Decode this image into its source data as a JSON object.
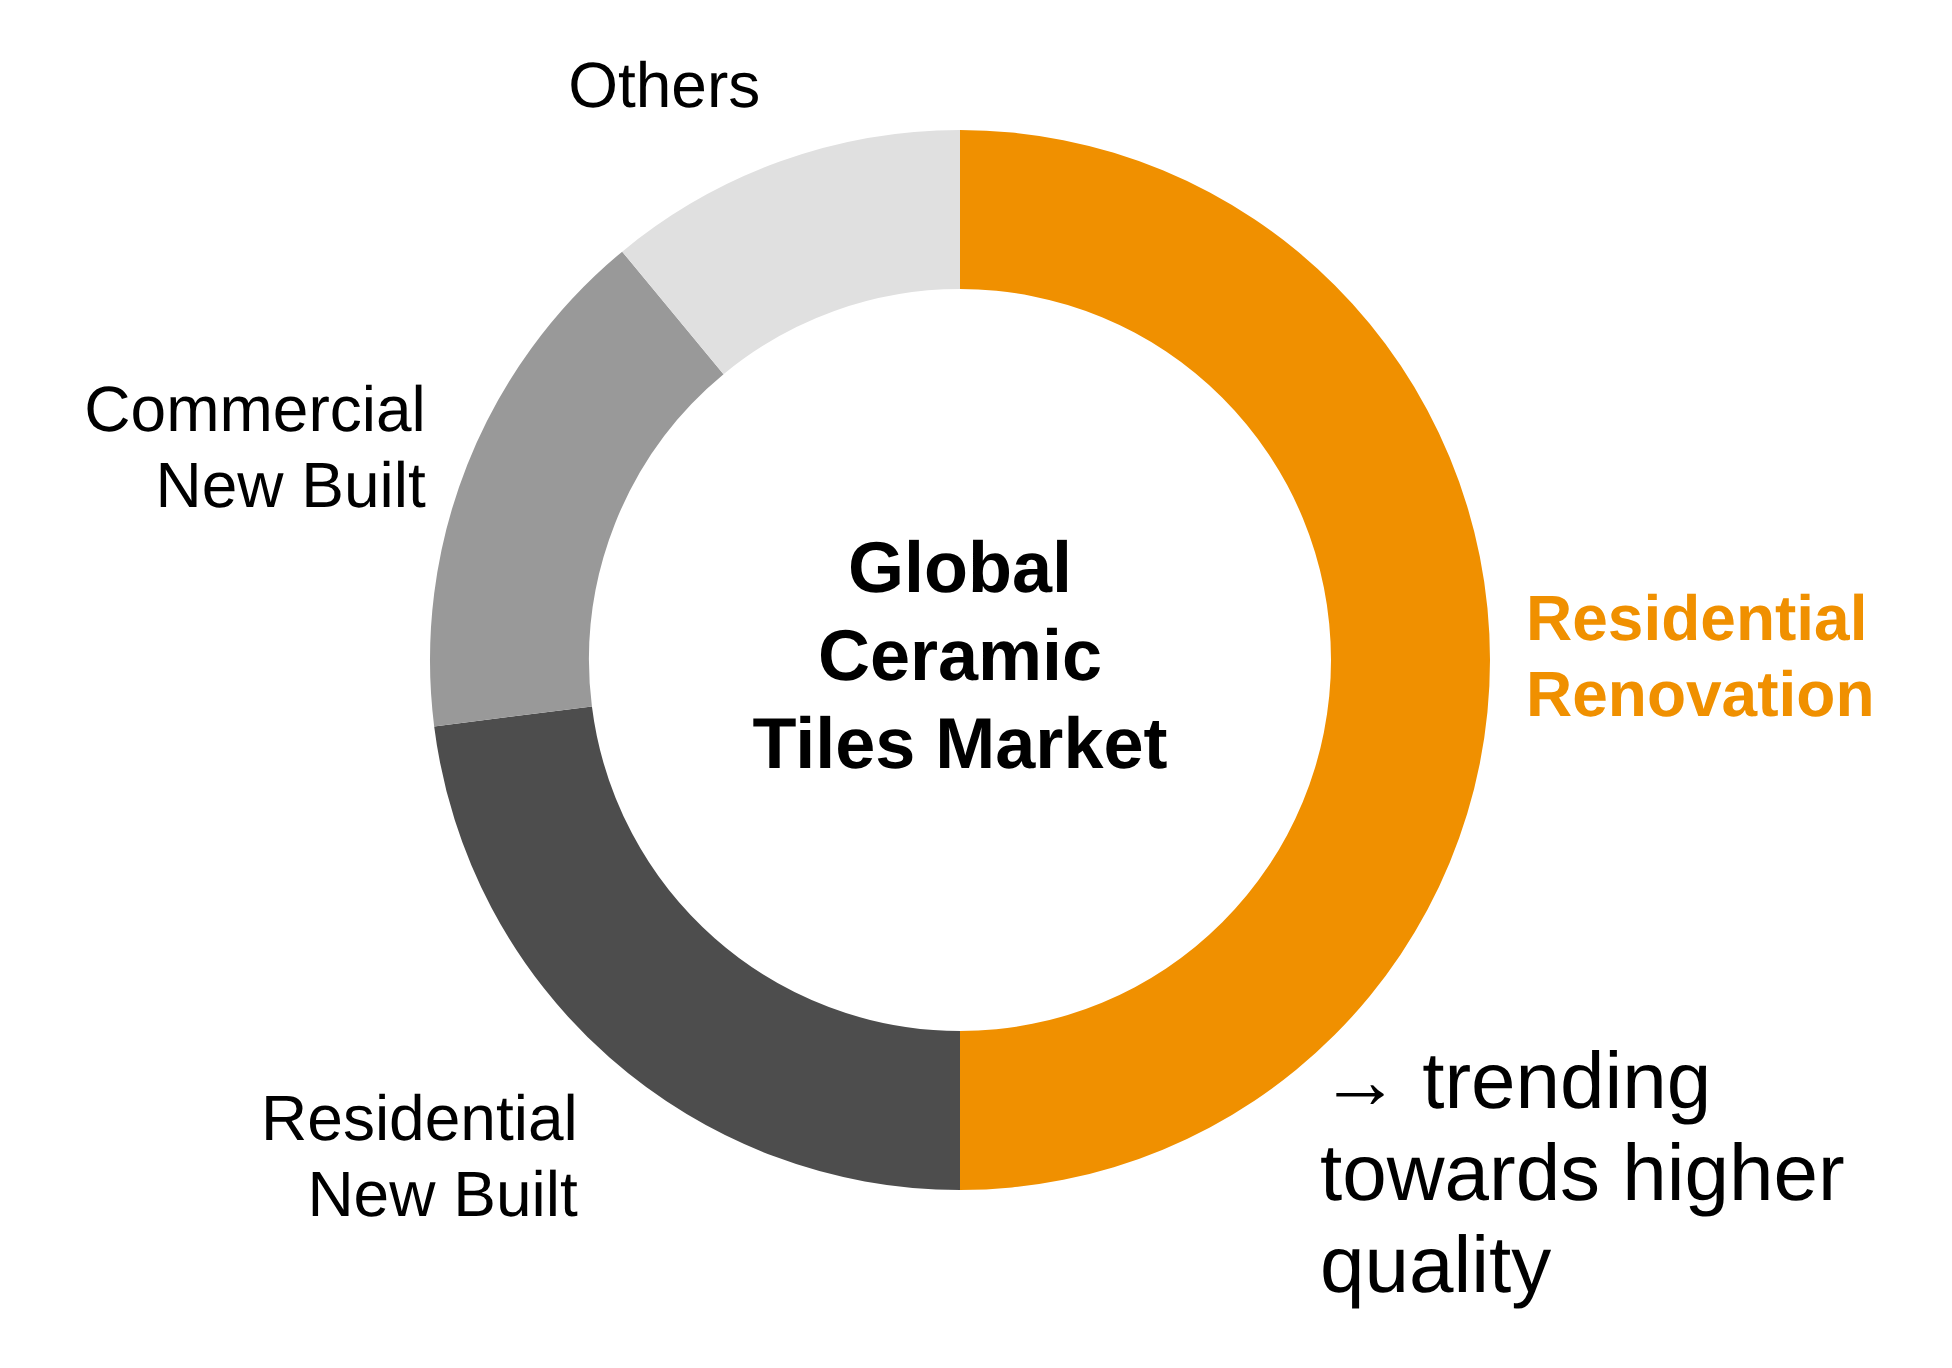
{
  "chart_data": {
    "type": "donut",
    "title": "Global Ceramic Tiles Market",
    "categories": [
      "Residential Renovation",
      "Residential New Built",
      "Commercial New Built",
      "Others"
    ],
    "values": [
      50,
      23,
      16,
      11
    ],
    "colors": [
      "#f09000",
      "#4d4d4d",
      "#999999",
      "#e0e0e0"
    ],
    "legend": false,
    "annotations": [
      "→ trending towards higher quality"
    ]
  }
}
